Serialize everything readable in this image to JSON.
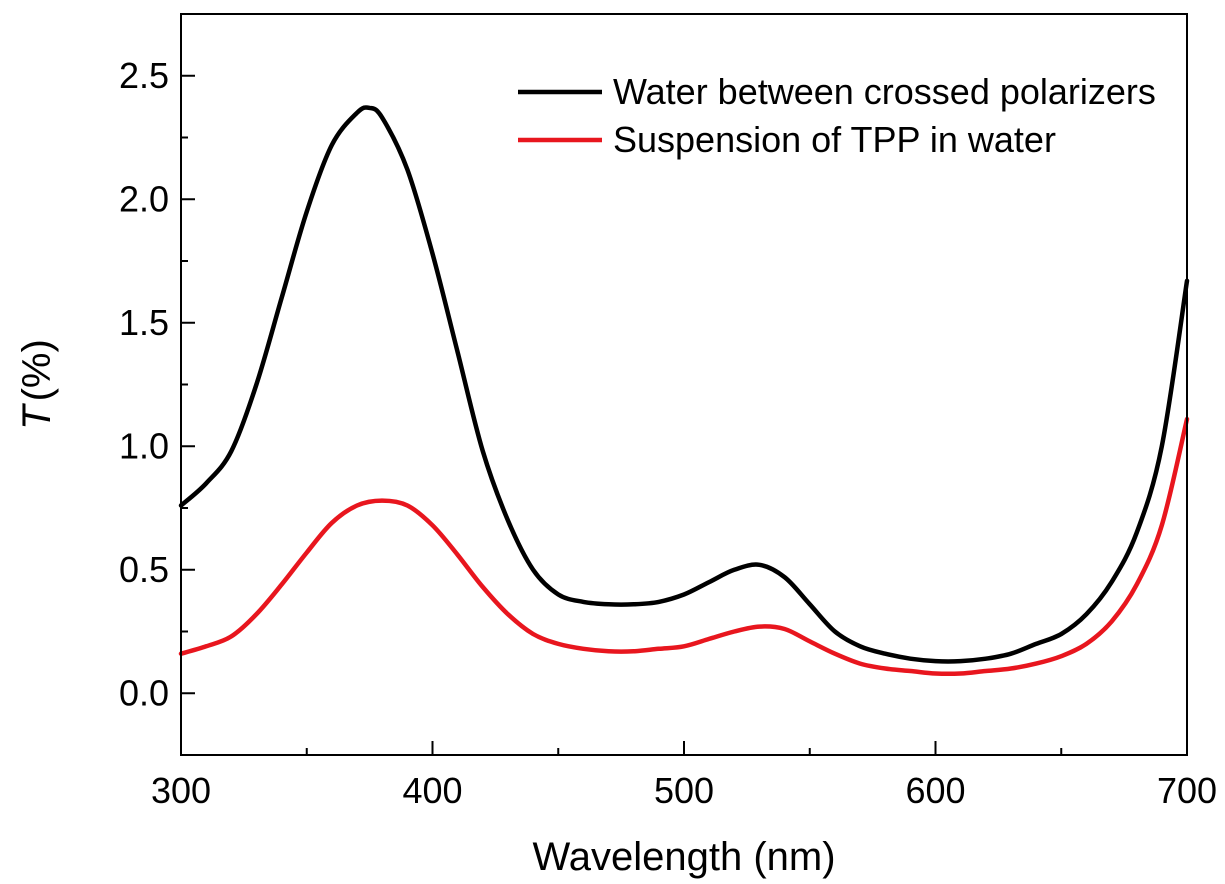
{
  "chart_data": {
    "type": "line",
    "title": "",
    "xlabel": "Wavelength (nm)",
    "ylabel_symbol": "T",
    "ylabel_unit": "(%)",
    "xlim": [
      300,
      700
    ],
    "ylim": [
      -0.25,
      2.75
    ],
    "xticks": [
      300,
      400,
      500,
      600,
      700
    ],
    "yticks": [
      0.0,
      0.5,
      1.0,
      1.5,
      2.0,
      2.5
    ],
    "xtick_labels": [
      "300",
      "400",
      "500",
      "600",
      "700"
    ],
    "ytick_labels": [
      "0.0",
      "0.5",
      "1.0",
      "1.5",
      "2.0",
      "2.5"
    ],
    "grid": false,
    "legend_position": "top-right",
    "series": [
      {
        "name": "Water between crossed polarizers",
        "color": "#000000",
        "x": [
          300,
          310,
          320,
          330,
          340,
          350,
          360,
          370,
          375,
          380,
          390,
          400,
          410,
          420,
          430,
          440,
          450,
          460,
          470,
          480,
          490,
          500,
          510,
          520,
          530,
          540,
          550,
          560,
          570,
          580,
          590,
          600,
          610,
          620,
          630,
          640,
          650,
          660,
          670,
          680,
          690,
          700
        ],
        "y": [
          0.76,
          0.85,
          0.98,
          1.25,
          1.6,
          1.95,
          2.22,
          2.35,
          2.37,
          2.33,
          2.12,
          1.78,
          1.38,
          0.98,
          0.7,
          0.5,
          0.4,
          0.37,
          0.36,
          0.36,
          0.37,
          0.4,
          0.45,
          0.5,
          0.52,
          0.47,
          0.36,
          0.25,
          0.19,
          0.16,
          0.14,
          0.13,
          0.13,
          0.14,
          0.16,
          0.2,
          0.24,
          0.32,
          0.45,
          0.65,
          1.0,
          1.67
        ]
      },
      {
        "name": "Suspension of TPP in water",
        "color": "#e8161e",
        "x": [
          300,
          310,
          320,
          330,
          340,
          350,
          360,
          370,
          380,
          390,
          400,
          410,
          420,
          430,
          440,
          450,
          460,
          470,
          480,
          490,
          500,
          510,
          520,
          530,
          540,
          550,
          560,
          570,
          580,
          590,
          600,
          610,
          620,
          630,
          640,
          650,
          660,
          670,
          680,
          690,
          700
        ],
        "y": [
          0.16,
          0.19,
          0.23,
          0.32,
          0.44,
          0.57,
          0.69,
          0.76,
          0.78,
          0.76,
          0.68,
          0.56,
          0.43,
          0.32,
          0.24,
          0.2,
          0.18,
          0.17,
          0.17,
          0.18,
          0.19,
          0.22,
          0.25,
          0.27,
          0.26,
          0.21,
          0.16,
          0.12,
          0.1,
          0.09,
          0.08,
          0.08,
          0.09,
          0.1,
          0.12,
          0.15,
          0.2,
          0.29,
          0.44,
          0.68,
          1.11
        ]
      }
    ]
  }
}
